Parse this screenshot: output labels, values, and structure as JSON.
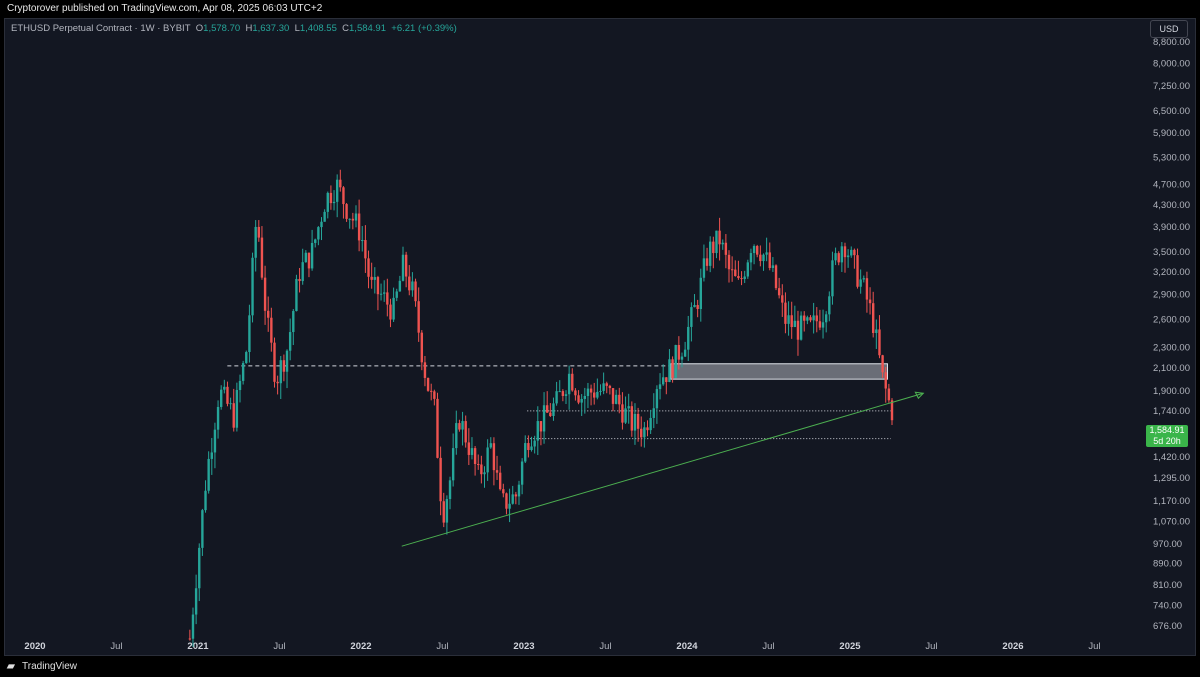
{
  "header": {
    "attribution": "Cryptorover published on TradingView.com, Apr 08, 2025 06:03 UTC+2"
  },
  "legend": {
    "symbol": "ETHUSD Perpetual Contract · 1W · BYBIT",
    "o_label": "O",
    "o_value": "1,578.70",
    "h_label": "H",
    "h_value": "1,637.30",
    "l_label": "L",
    "l_value": "1,408.55",
    "c_label": "C",
    "c_value": "1,584.91",
    "change": "+6.21 (+0.39%)"
  },
  "currency_button": "USD",
  "price_tag": {
    "price": "1,584.91",
    "countdown": "5d 20h"
  },
  "footer": {
    "logo_icon": "tradingview-logo-icon",
    "brand": "TradingView"
  },
  "colors": {
    "up": "#26a69a",
    "down": "#ef5350",
    "background": "#131722",
    "trendline": "#4caf50",
    "zone": "#b2b5be",
    "level_line": "#d1d4dc"
  },
  "chart_data": {
    "type": "candlestick",
    "symbol": "ETHUSD",
    "interval": "1W",
    "y_scale": "log",
    "y_ticks": [
      "8,800.00",
      "8,000.00",
      "7,250.00",
      "6,500.00",
      "5,900.00",
      "5,300.00",
      "4,700.00",
      "4,300.00",
      "3,900.00",
      "3,500.00",
      "3,200.00",
      "2,900.00",
      "2,600.00",
      "2,300.00",
      "2,100.00",
      "1,900.00",
      "1,740.00",
      "1,584.91",
      "1,420.00",
      "1,295.00",
      "1,170.00",
      "1,070.00",
      "970.00",
      "890.00",
      "810.00",
      "740.00",
      "676.00"
    ],
    "y_tick_values": [
      8800,
      8000,
      7250,
      6500,
      5900,
      5300,
      4700,
      4300,
      3900,
      3500,
      3200,
      2900,
      2600,
      2300,
      2100,
      1900,
      1740,
      1584.91,
      1420,
      1295,
      1170,
      1070,
      970,
      890,
      810,
      740,
      676
    ],
    "x_ticks": [
      {
        "label": "2020",
        "t": 2020.0,
        "year": true
      },
      {
        "label": "Jul",
        "t": 2020.5,
        "year": false
      },
      {
        "label": "2021",
        "t": 2021.0,
        "year": true
      },
      {
        "label": "Jul",
        "t": 2021.5,
        "year": false
      },
      {
        "label": "2022",
        "t": 2022.0,
        "year": true
      },
      {
        "label": "Jul",
        "t": 2022.5,
        "year": false
      },
      {
        "label": "2023",
        "t": 2023.0,
        "year": true
      },
      {
        "label": "Jul",
        "t": 2023.5,
        "year": false
      },
      {
        "label": "2024",
        "t": 2024.0,
        "year": true
      },
      {
        "label": "Jul",
        "t": 2024.5,
        "year": false
      },
      {
        "label": "2025",
        "t": 2025.0,
        "year": true
      },
      {
        "label": "Jul",
        "t": 2025.5,
        "year": false
      },
      {
        "label": "2026",
        "t": 2026.0,
        "year": true
      },
      {
        "label": "Jul",
        "t": 2026.5,
        "year": false
      }
    ],
    "price_path": [
      [
        2020.95,
        640
      ],
      [
        2021.05,
        1300
      ],
      [
        2021.13,
        1900
      ],
      [
        2021.22,
        1700
      ],
      [
        2021.3,
        2300
      ],
      [
        2021.36,
        4150
      ],
      [
        2021.42,
        2600
      ],
      [
        2021.48,
        2000
      ],
      [
        2021.55,
        2300
      ],
      [
        2021.62,
        3200
      ],
      [
        2021.7,
        3500
      ],
      [
        2021.78,
        4400
      ],
      [
        2021.85,
        4700
      ],
      [
        2021.92,
        4200
      ],
      [
        2022.0,
        3800
      ],
      [
        2022.06,
        3000
      ],
      [
        2022.12,
        2900
      ],
      [
        2022.2,
        2700
      ],
      [
        2022.26,
        3300
      ],
      [
        2022.32,
        2900
      ],
      [
        2022.4,
        2000
      ],
      [
        2022.45,
        1750
      ],
      [
        2022.5,
        1100
      ],
      [
        2022.55,
        1300
      ],
      [
        2022.6,
        1700
      ],
      [
        2022.66,
        1500
      ],
      [
        2022.72,
        1300
      ],
      [
        2022.8,
        1500
      ],
      [
        2022.86,
        1150
      ],
      [
        2022.95,
        1200
      ],
      [
        2023.02,
        1550
      ],
      [
        2023.1,
        1650
      ],
      [
        2023.2,
        1800
      ],
      [
        2023.28,
        2050
      ],
      [
        2023.35,
        1850
      ],
      [
        2023.42,
        1900
      ],
      [
        2023.5,
        1900
      ],
      [
        2023.58,
        1800
      ],
      [
        2023.66,
        1650
      ],
      [
        2023.74,
        1600
      ],
      [
        2023.82,
        2000
      ],
      [
        2023.9,
        2100
      ],
      [
        2023.98,
        2350
      ],
      [
        2024.06,
        2800
      ],
      [
        2024.13,
        3500
      ],
      [
        2024.2,
        3700
      ],
      [
        2024.26,
        3200
      ],
      [
        2024.32,
        3000
      ],
      [
        2024.4,
        3700
      ],
      [
        2024.46,
        3500
      ],
      [
        2024.52,
        3200
      ],
      [
        2024.6,
        2600
      ],
      [
        2024.68,
        2500
      ],
      [
        2024.76,
        2500
      ],
      [
        2024.84,
        2700
      ],
      [
        2024.9,
        3300
      ],
      [
        2024.96,
        3700
      ],
      [
        2025.02,
        3300
      ],
      [
        2025.08,
        3000
      ],
      [
        2025.14,
        2600
      ],
      [
        2025.2,
        2000
      ],
      [
        2025.24,
        1800
      ],
      [
        2025.27,
        1584.91
      ]
    ],
    "annotations": {
      "dashed_level": 2120,
      "resistance_zone": [
        2000,
        2140
      ],
      "dotted_level_1": 1740,
      "dotted_level_2": 1540,
      "trendline": [
        [
          2022.25,
          960
        ],
        [
          2025.45,
          1880
        ]
      ]
    }
  }
}
